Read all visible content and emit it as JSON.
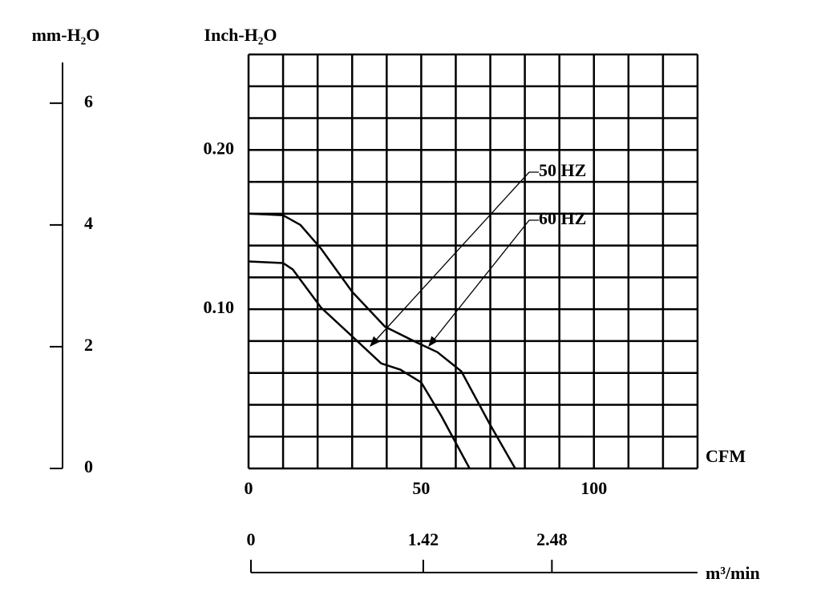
{
  "chart_data": {
    "type": "line",
    "xlabel": "CFM",
    "ylabel": "Inch-H₂O",
    "y2label": "mm-H₂O",
    "x2label": "m³/min",
    "xlim": [
      0,
      130
    ],
    "ylim": [
      0,
      0.26
    ],
    "y2lim": [
      0,
      6.8
    ],
    "x2lim": [
      0,
      3.68
    ],
    "xticks": [
      0,
      50,
      100
    ],
    "yticks": [
      {
        "value": 0.1,
        "label": "0.10"
      },
      {
        "value": 0.2,
        "label": "0.20"
      }
    ],
    "y2ticks": [
      0,
      2,
      4,
      6
    ],
    "x2ticks": [
      0,
      1.42,
      2.48
    ],
    "xgrid": [
      0,
      10,
      20,
      30,
      40,
      50,
      60,
      70,
      80,
      90,
      100,
      110,
      120,
      130
    ],
    "ygrid": [
      0,
      0.02,
      0.04,
      0.06,
      0.08,
      0.1,
      0.12,
      0.14,
      0.16,
      0.18,
      0.2,
      0.22,
      0.24,
      0.26
    ],
    "grid": true,
    "series": [
      {
        "name": "50 HZ",
        "color": "#000000",
        "x": [
          0,
          10,
          12.8,
          21,
          30,
          38.4,
          44,
          50,
          55.8,
          64
        ],
        "values": [
          0.13,
          0.129,
          0.125,
          0.101,
          0.083,
          0.066,
          0.062,
          0.054,
          0.033,
          0
        ]
      },
      {
        "name": "60 HZ",
        "color": "#000000",
        "x": [
          0,
          10,
          15,
          21,
          30,
          39.5,
          48.8,
          54.7,
          61.6,
          69.8,
          77.2
        ],
        "values": [
          0.16,
          0.159,
          0.153,
          0.138,
          0.111,
          0.089,
          0.079,
          0.073,
          0.061,
          0.028,
          0
        ]
      }
    ]
  }
}
